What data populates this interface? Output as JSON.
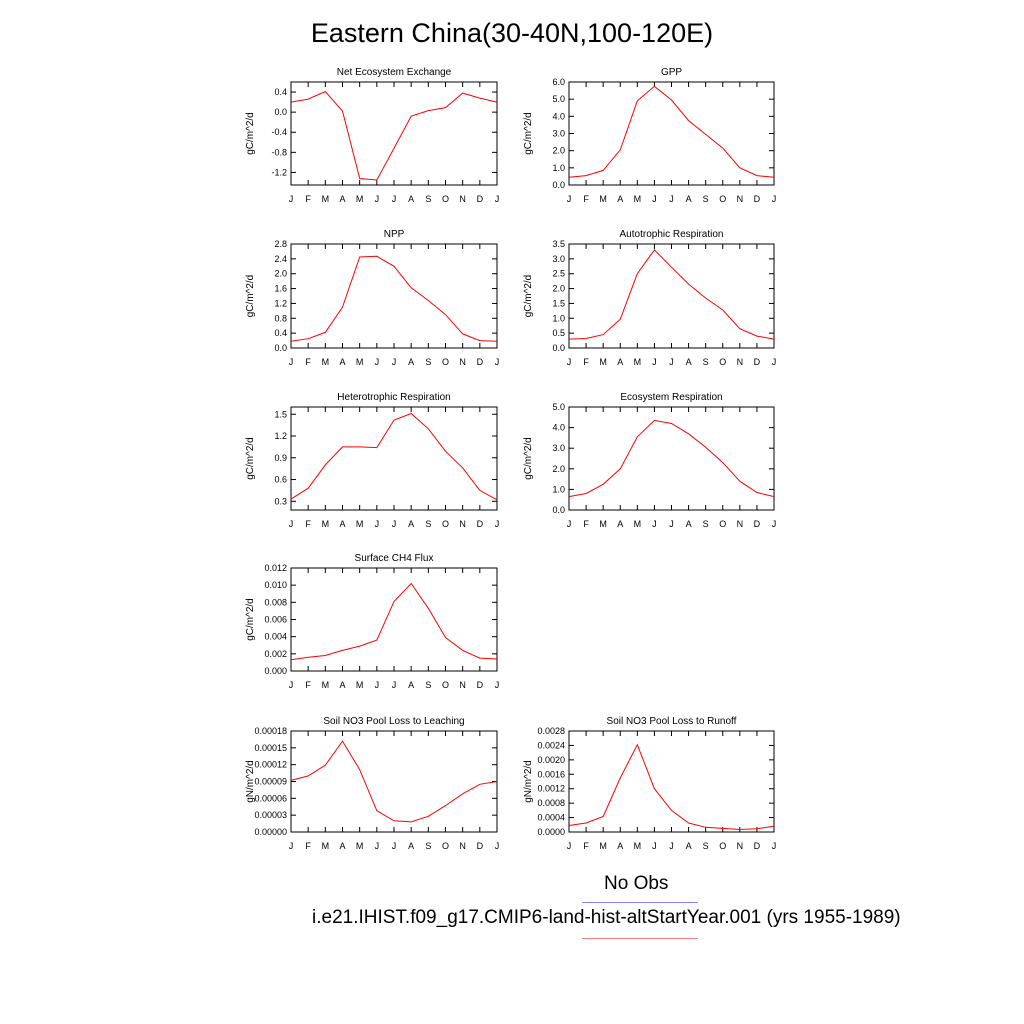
{
  "page": {
    "title": "Eastern China(30-40N,100-120E)"
  },
  "legend": {
    "entries": [
      {
        "label": "No Obs",
        "color": "#8080ff"
      },
      {
        "label": "i.e21.IHIST.f09_g17.CMIP6-land-hist-altStartYear.001 (yrs 1955-1989)",
        "color": "#ff8080"
      }
    ]
  },
  "chart_data": [
    {
      "type": "line",
      "title": "Net Ecosystem Exchange",
      "ylabel": "gC/m^2/d",
      "x": [
        "J",
        "F",
        "M",
        "A",
        "M",
        "J",
        "J",
        "A",
        "S",
        "O",
        "N",
        "D",
        "J"
      ],
      "ylim": [
        -1.45,
        0.6
      ],
      "yticks": [
        0.4,
        0.0,
        -0.4,
        -0.8,
        -1.2
      ],
      "yticklabels": [
        "0.4",
        "0.0",
        "-0.4",
        "-0.8",
        "-1.2"
      ],
      "series": [
        {
          "color": "#ff0000",
          "values": [
            0.2,
            0.26,
            0.41,
            0.02,
            -1.32,
            -1.35,
            -0.72,
            -0.08,
            0.03,
            0.09,
            0.38,
            0.28,
            0.2
          ]
        }
      ]
    },
    {
      "type": "line",
      "title": "GPP",
      "ylabel": "gC/m^2/d",
      "x": [
        "J",
        "F",
        "M",
        "A",
        "M",
        "J",
        "J",
        "A",
        "S",
        "O",
        "N",
        "D",
        "J"
      ],
      "ylim": [
        0,
        6.0
      ],
      "yticks": [
        0,
        1,
        2,
        3,
        4,
        5,
        6
      ],
      "yticklabels": [
        "0.0",
        "1.0",
        "2.0",
        "3.0",
        "4.0",
        "5.0",
        "6.0"
      ],
      "series": [
        {
          "color": "#ff0000",
          "values": [
            0.45,
            0.55,
            0.85,
            2.05,
            4.9,
            5.75,
            4.95,
            3.75,
            2.95,
            2.15,
            1.0,
            0.55,
            0.45
          ]
        }
      ]
    },
    {
      "type": "line",
      "title": "NPP",
      "ylabel": "gC/m^2/d",
      "x": [
        "J",
        "F",
        "M",
        "A",
        "M",
        "J",
        "J",
        "A",
        "S",
        "O",
        "N",
        "D",
        "J"
      ],
      "ylim": [
        0,
        2.8
      ],
      "yticks": [
        0,
        0.4,
        0.8,
        1.2,
        1.6,
        2.0,
        2.4,
        2.8
      ],
      "yticklabels": [
        "0.0",
        "0.4",
        "0.8",
        "1.2",
        "1.6",
        "2.0",
        "2.4",
        "2.8"
      ],
      "series": [
        {
          "color": "#ff0000",
          "values": [
            0.18,
            0.25,
            0.42,
            1.1,
            2.45,
            2.47,
            2.2,
            1.62,
            1.28,
            0.9,
            0.38,
            0.2,
            0.18
          ]
        }
      ]
    },
    {
      "type": "line",
      "title": "Autotrophic Respiration",
      "ylabel": "gC/m^2/d",
      "x": [
        "J",
        "F",
        "M",
        "A",
        "M",
        "J",
        "J",
        "A",
        "S",
        "O",
        "N",
        "D",
        "J"
      ],
      "ylim": [
        0,
        3.5
      ],
      "yticks": [
        0,
        0.5,
        1.0,
        1.5,
        2.0,
        2.5,
        3.0,
        3.5
      ],
      "yticklabels": [
        "0.0",
        "0.5",
        "1.0",
        "1.5",
        "2.0",
        "2.5",
        "3.0",
        "3.5"
      ],
      "series": [
        {
          "color": "#ff0000",
          "values": [
            0.3,
            0.32,
            0.45,
            0.97,
            2.5,
            3.3,
            2.72,
            2.15,
            1.68,
            1.28,
            0.65,
            0.4,
            0.3
          ]
        }
      ]
    },
    {
      "type": "line",
      "title": "Heterotrophic Respiration",
      "ylabel": "gC/m^2/d",
      "x": [
        "J",
        "F",
        "M",
        "A",
        "M",
        "J",
        "J",
        "A",
        "S",
        "O",
        "N",
        "D",
        "J"
      ],
      "ylim": [
        0.18,
        1.6
      ],
      "yticks": [
        0.3,
        0.6,
        0.9,
        1.2,
        1.5
      ],
      "yticklabels": [
        "0.3",
        "0.6",
        "0.9",
        "1.2",
        "1.5"
      ],
      "series": [
        {
          "color": "#ff0000",
          "values": [
            0.33,
            0.48,
            0.8,
            1.05,
            1.05,
            1.04,
            1.42,
            1.51,
            1.3,
            0.99,
            0.76,
            0.45,
            0.32
          ]
        }
      ]
    },
    {
      "type": "line",
      "title": "Ecosystem Respiration",
      "ylabel": "gC/m^2/d",
      "x": [
        "J",
        "F",
        "M",
        "A",
        "M",
        "J",
        "J",
        "A",
        "S",
        "O",
        "N",
        "D",
        "J"
      ],
      "ylim": [
        0,
        5.0
      ],
      "yticks": [
        0,
        1,
        2,
        3,
        4,
        5
      ],
      "yticklabels": [
        "0.0",
        "1.0",
        "2.0",
        "3.0",
        "4.0",
        "5.0"
      ],
      "series": [
        {
          "color": "#ff0000",
          "values": [
            0.65,
            0.8,
            1.25,
            2.0,
            3.55,
            4.35,
            4.2,
            3.7,
            3.05,
            2.3,
            1.4,
            0.85,
            0.65
          ]
        }
      ]
    },
    {
      "type": "line",
      "title": "Surface CH4 Flux",
      "ylabel": "gC/m^2/d",
      "x": [
        "J",
        "F",
        "M",
        "A",
        "M",
        "J",
        "J",
        "A",
        "S",
        "O",
        "N",
        "D",
        "J"
      ],
      "ylim": [
        0,
        0.012
      ],
      "yticks": [
        0,
        0.002,
        0.004,
        0.006,
        0.008,
        0.01,
        0.012
      ],
      "yticklabels": [
        "0.000",
        "0.002",
        "0.004",
        "0.006",
        "0.008",
        "0.010",
        "0.012"
      ],
      "series": [
        {
          "color": "#ff0000",
          "values": [
            0.0013,
            0.0016,
            0.0018,
            0.0024,
            0.0029,
            0.0036,
            0.0081,
            0.0102,
            0.0073,
            0.0039,
            0.0024,
            0.0015,
            0.0014
          ]
        }
      ]
    },
    {
      "type": "line",
      "title": "Soil NO3 Pool Loss to Leaching",
      "ylabel": "gN/m^2/d",
      "x": [
        "J",
        "F",
        "M",
        "A",
        "M",
        "J",
        "J",
        "A",
        "S",
        "O",
        "N",
        "D",
        "J"
      ],
      "ylim": [
        0,
        0.00018
      ],
      "yticks": [
        0,
        3e-05,
        6e-05,
        9e-05,
        0.00012,
        0.00015,
        0.00018
      ],
      "yticklabels": [
        "0.00000",
        "0.00003",
        "0.00006",
        "0.00009",
        "0.00012",
        "0.00015",
        "0.00018"
      ],
      "series": [
        {
          "color": "#ff0000",
          "values": [
            9.2e-05,
            0.0001,
            0.000119,
            0.000162,
            0.000111,
            3.8e-05,
            2e-05,
            1.8e-05,
            2.8e-05,
            4.7e-05,
            6.8e-05,
            8.5e-05,
            9e-05
          ]
        }
      ]
    },
    {
      "type": "line",
      "title": "Soil NO3 Pool Loss to Runoff",
      "ylabel": "gN/m^2/d",
      "x": [
        "J",
        "F",
        "M",
        "A",
        "M",
        "J",
        "J",
        "A",
        "S",
        "O",
        "N",
        "D",
        "J"
      ],
      "ylim": [
        0,
        0.0028
      ],
      "yticks": [
        0,
        0.0004,
        0.0008,
        0.0012,
        0.0016,
        0.002,
        0.0024,
        0.0028
      ],
      "yticklabels": [
        "0.0000",
        "0.0004",
        "0.0008",
        "0.0012",
        "0.0016",
        "0.0020",
        "0.0024",
        "0.0028"
      ],
      "series": [
        {
          "color": "#ff0000",
          "values": [
            0.00018,
            0.00025,
            0.00043,
            0.0015,
            0.00242,
            0.0012,
            0.0006,
            0.00025,
            0.00013,
            0.0001,
            7e-05,
            9e-05,
            0.00016
          ]
        }
      ]
    }
  ]
}
